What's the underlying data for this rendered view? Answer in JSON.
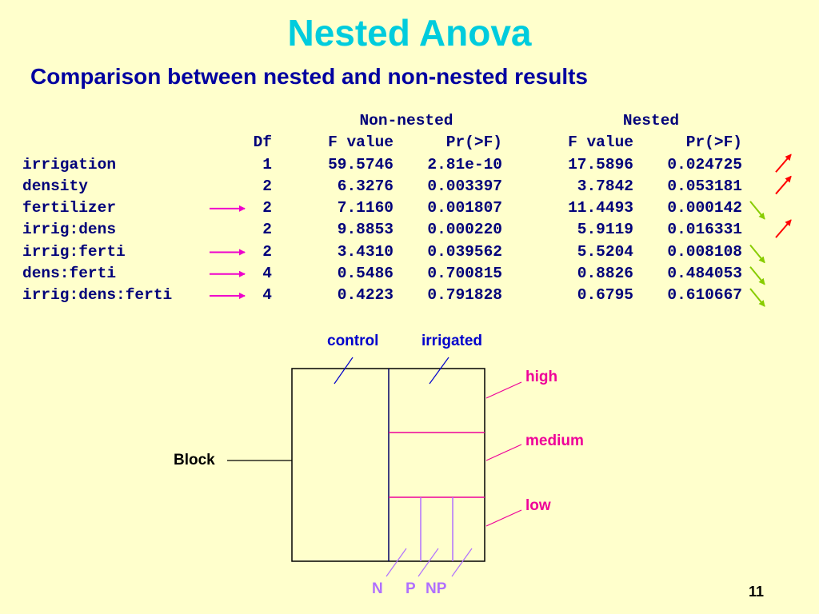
{
  "slide": {
    "title": "Nested Anova",
    "subtitle": "Comparison between nested and non-nested results",
    "page_number": "11"
  },
  "table": {
    "group_headers": {
      "non_nested": "Non-nested",
      "nested": "Nested"
    },
    "columns": {
      "df": "Df",
      "f1": "F value",
      "p1": "Pr(>F)",
      "f2": "F value",
      "p2": "Pr(>F)"
    },
    "rows": [
      {
        "term": "irrigation",
        "df": "1",
        "f1": "59.5746",
        "p1": "2.81e-10",
        "f2": "17.5896",
        "p2": "0.024725",
        "left_arrow": false,
        "change": "up"
      },
      {
        "term": "density",
        "df": "2",
        "f1": "6.3276",
        "p1": "0.003397",
        "f2": "3.7842",
        "p2": "0.053181",
        "left_arrow": false,
        "change": "up"
      },
      {
        "term": "fertilizer",
        "df": "2",
        "f1": "7.1160",
        "p1": "0.001807",
        "f2": "11.4493",
        "p2": "0.000142",
        "left_arrow": true,
        "change": "down"
      },
      {
        "term": "irrig:dens",
        "df": "2",
        "f1": "9.8853",
        "p1": "0.000220",
        "f2": "5.9119",
        "p2": "0.016331",
        "left_arrow": false,
        "change": "up"
      },
      {
        "term": "irrig:ferti",
        "df": "2",
        "f1": "3.4310",
        "p1": "0.039562",
        "f2": "5.5204",
        "p2": "0.008108",
        "left_arrow": true,
        "change": "down"
      },
      {
        "term": "dens:ferti",
        "df": "4",
        "f1": "0.5486",
        "p1": "0.700815",
        "f2": "0.8826",
        "p2": "0.484053",
        "left_arrow": true,
        "change": "down"
      },
      {
        "term": "irrig:dens:ferti",
        "df": "4",
        "f1": "0.4223",
        "p1": "0.791828",
        "f2": "0.6795",
        "p2": "0.610667",
        "left_arrow": true,
        "change": "down"
      }
    ]
  },
  "diagram": {
    "control": "control",
    "irrigated": "irrigated",
    "high": "high",
    "medium": "medium",
    "low": "low",
    "block": "Block",
    "n": "N",
    "p": "P",
    "np": "NP"
  },
  "colors": {
    "title": "#00CCDD",
    "subtitle": "#0000A0",
    "table_text": "#00007A",
    "left_arrow": "#EE00CC",
    "up_arrow": "#FF0000",
    "down_arrow": "#88CC00",
    "label_blue": "#0000CC",
    "label_magenta": "#EE0099",
    "label_violet": "#B070FF",
    "background": "#FFFFCC"
  }
}
